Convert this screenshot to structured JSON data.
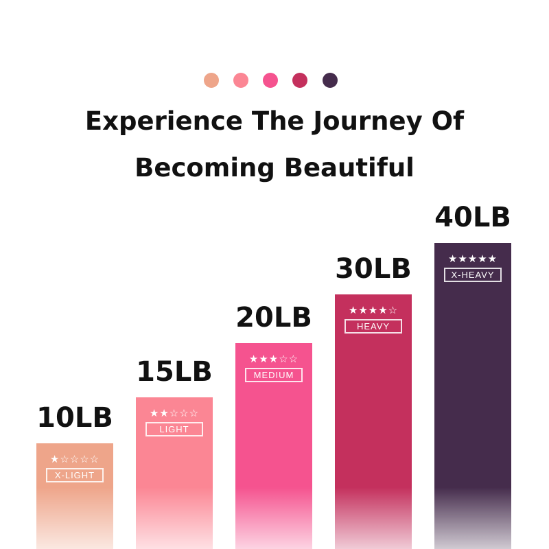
{
  "header": {
    "title_line1": "Experience The Journey Of",
    "title_line2": "Becoming Beautiful"
  },
  "dot_colors": [
    "#eea58a",
    "#fb8694",
    "#f5538f",
    "#c4305d",
    "#452c4c"
  ],
  "chart_data": {
    "type": "bar",
    "categories": [
      "10LB",
      "15LB",
      "20LB",
      "30LB",
      "40LB"
    ],
    "values": [
      10,
      15,
      20,
      30,
      40
    ],
    "unit": "LB",
    "levels": [
      "X-LIGHT",
      "LIGHT",
      "MEDIUM",
      "HEAVY",
      "X-HEAVY"
    ],
    "star_ratings": [
      1,
      2,
      3,
      4,
      5
    ],
    "star_max": 5,
    "colors": [
      "#eea58a",
      "#fb8694",
      "#f5538f",
      "#c4305d",
      "#452c4c"
    ]
  }
}
